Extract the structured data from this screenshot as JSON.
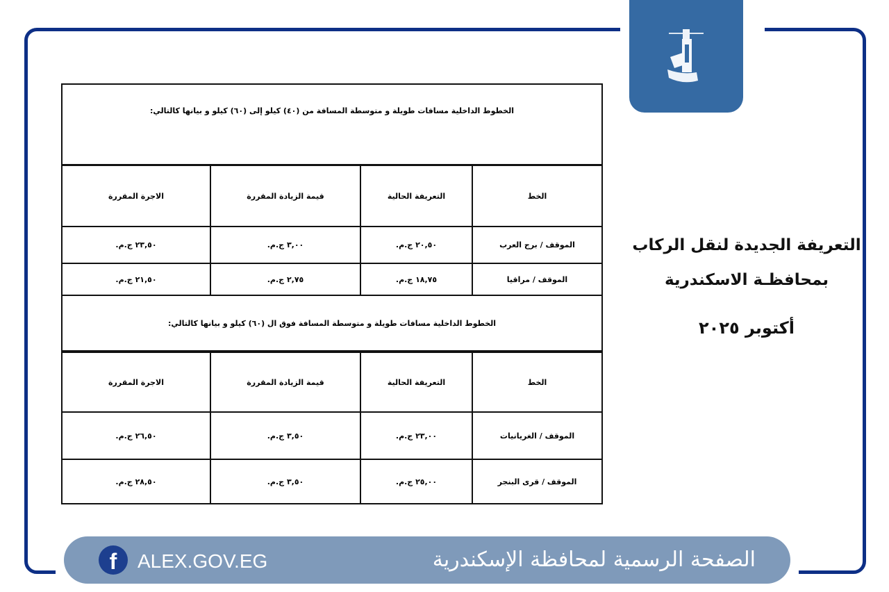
{
  "colors": {
    "frame": "#0d2f86",
    "logo_bg": "#356aa3",
    "footer_bg": "#7f9aba",
    "facebook": "#1d3f8f"
  },
  "side": {
    "title_line1": "التعريفة الجديدة لنقل الركاب",
    "title_line2": "بمحافظـة الاسكندرية",
    "date": "أكتوبر ٢٠٢٥"
  },
  "footer": {
    "page_name": "الصفحة الرسمية لمحافظة الإسكندرية",
    "site": "ALEX.GOV.EG",
    "facebook_icon": "f"
  },
  "sections": [
    {
      "title": "الخطوط الداخلية مسافات طويلة و متوسطة المسافة من (٤٠) كيلو إلى (٦٠) كيلو و بيانها كالتالي:",
      "headers": [
        "الخط",
        "التعريفة الحالية",
        "قيمة الزيادة المقررة",
        "الاجرة المقررة"
      ],
      "rows": [
        [
          "الموقف / برج العرب",
          "٢٠,٥٠ ج.م.",
          "٣,٠٠ ج.م.",
          "٢٣,٥٠ ج.م."
        ],
        [
          "الموقف / مراقيا",
          "١٨,٧٥ ج.م.",
          "٢,٧٥ ج.م.",
          "٢١,٥٠ ج.م."
        ]
      ]
    },
    {
      "title": "الخطوط الداخلية مسافات طويلة و متوسطة المسافة فوق ال (٦٠) كيلو و بيانها كالتالي:",
      "headers": [
        "الخط",
        "التعريفة الحالية",
        "قيمة الزيادة المقررة",
        "الاجرة المقررة"
      ],
      "rows": [
        [
          "الموقف / الغريانيات",
          "٢٣,٠٠ ج.م.",
          "٣,٥٠ ج.م.",
          "٢٦,٥٠ ج.م."
        ],
        [
          "الموقف / قرى البنجر",
          "٢٥,٠٠ ج.م.",
          "٣,٥٠ ج.م.",
          "٢٨,٥٠ ج.م."
        ]
      ]
    }
  ]
}
